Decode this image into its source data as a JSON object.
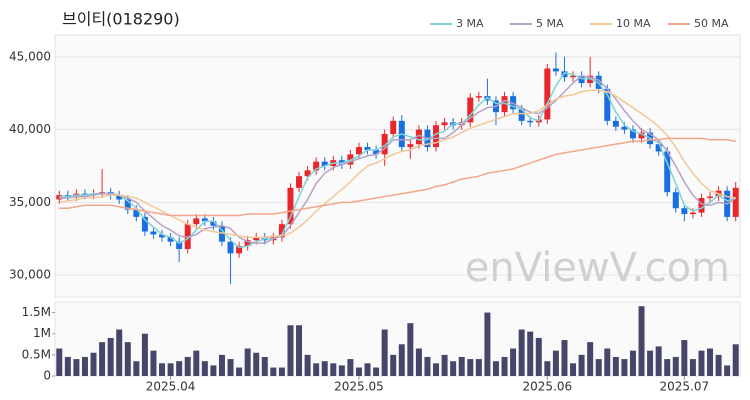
{
  "chart_data": [
    {
      "type": "candlestick",
      "title": "브이티(018290)",
      "watermark": "enViewV.com",
      "up_color": "#e8262b",
      "down_color": "#1a6fe0",
      "ylim": [
        28500,
        46500
      ],
      "yticks": [
        {
          "value": 30000,
          "label": "30,000"
        },
        {
          "value": 35000,
          "label": "35,000"
        },
        {
          "value": 40000,
          "label": "40,000"
        },
        {
          "value": 45000,
          "label": "45,000"
        }
      ],
      "grid": true,
      "legend": "top-right",
      "open": [
        35200,
        35500,
        35400,
        35600,
        35500,
        35600,
        35700,
        35500,
        35200,
        34500,
        34000,
        33000,
        32800,
        32600,
        32300,
        31800,
        33500,
        33900,
        33700,
        33400,
        32300,
        31500,
        32000,
        32400,
        32600,
        32400,
        32600,
        33500,
        36000,
        36800,
        37200,
        37800,
        37500,
        37900,
        37600,
        38300,
        38800,
        38600,
        38300,
        39700,
        40600,
        38800,
        39000,
        40000,
        38800,
        40300,
        40500,
        40300,
        40500,
        42200,
        42300,
        42000,
        41200,
        42300,
        41400,
        40600,
        40500,
        40700,
        44200,
        44000,
        43600,
        43700,
        43200,
        43700,
        42800,
        40600,
        40200,
        40000,
        39400,
        39800,
        39000,
        38500,
        35700,
        34600,
        34200,
        34300,
        35300,
        35400,
        35800,
        34000
      ],
      "high": [
        35800,
        35800,
        35900,
        35900,
        35900,
        37300,
        36000,
        35800,
        35500,
        34800,
        34300,
        33300,
        33100,
        32900,
        32600,
        33800,
        34200,
        34200,
        34000,
        33700,
        32600,
        32300,
        32700,
        32900,
        32900,
        32900,
        33800,
        36300,
        37100,
        37500,
        38100,
        38100,
        38200,
        38200,
        38600,
        39100,
        39100,
        38900,
        40000,
        40900,
        41000,
        39300,
        40300,
        40300,
        40600,
        40800,
        40800,
        40800,
        42500,
        42600,
        43500,
        42300,
        42600,
        42600,
        41700,
        40900,
        41000,
        44500,
        45300,
        45000,
        44000,
        44000,
        45000,
        44000,
        43100,
        40900,
        40500,
        40300,
        40100,
        40100,
        39300,
        38800,
        36000,
        34900,
        34600,
        35600,
        35700,
        36100,
        36100,
        36400
      ],
      "low": [
        34900,
        35100,
        35100,
        35200,
        35200,
        35300,
        35200,
        34900,
        34200,
        33700,
        32700,
        32500,
        32300,
        32000,
        30900,
        31500,
        33200,
        33400,
        33100,
        32000,
        29400,
        31200,
        31700,
        32100,
        32100,
        32100,
        32300,
        33200,
        35700,
        36500,
        36900,
        37200,
        37200,
        37300,
        37300,
        38000,
        38300,
        38000,
        37500,
        39400,
        38500,
        38000,
        38700,
        38500,
        38500,
        40000,
        40000,
        40000,
        40200,
        41900,
        41700,
        40300,
        40900,
        41100,
        40300,
        40200,
        40200,
        40400,
        43700,
        43300,
        43300,
        42900,
        42900,
        42500,
        40300,
        39900,
        39700,
        39100,
        39100,
        38700,
        38200,
        35400,
        34300,
        33700,
        33900,
        34000,
        35000,
        35100,
        33700,
        33700
      ],
      "close": [
        35500,
        35400,
        35600,
        35500,
        35600,
        35700,
        35500,
        35200,
        34500,
        34000,
        33000,
        32800,
        32600,
        32300,
        31800,
        33500,
        33900,
        33700,
        33400,
        32300,
        31500,
        32000,
        32400,
        32600,
        32400,
        32600,
        33500,
        36000,
        36800,
        37200,
        37800,
        37500,
        37900,
        37600,
        38300,
        38800,
        38600,
        38300,
        39700,
        40600,
        38800,
        39000,
        40000,
        38800,
        40300,
        40500,
        40300,
        40500,
        42200,
        42300,
        42000,
        41200,
        42300,
        41400,
        40600,
        40500,
        40700,
        44200,
        44000,
        43600,
        43700,
        43200,
        43700,
        42800,
        40600,
        40200,
        40000,
        39400,
        39800,
        39000,
        38500,
        35700,
        34600,
        34200,
        34300,
        35300,
        35400,
        35800,
        34000,
        36000
      ],
      "series": [
        {
          "name": "3 MA",
          "color": "#7fd3d6",
          "values": [
            35400,
            35400,
            35500,
            35500,
            35600,
            35600,
            35600,
            35500,
            35100,
            34600,
            33800,
            33300,
            32800,
            32600,
            32200,
            32500,
            33100,
            33700,
            33700,
            33100,
            32400,
            31900,
            32000,
            32300,
            32500,
            32500,
            32800,
            34000,
            35400,
            36700,
            37300,
            37500,
            37700,
            37700,
            37900,
            38200,
            38600,
            38600,
            38900,
            39500,
            39700,
            39500,
            39300,
            39300,
            39700,
            39900,
            40400,
            40400,
            41000,
            41700,
            42200,
            41800,
            41800,
            41600,
            41400,
            40800,
            40600,
            41800,
            43000,
            43900,
            43800,
            43500,
            43500,
            43200,
            42400,
            41200,
            40300,
            39900,
            39700,
            39400,
            39100,
            37700,
            36300,
            34800,
            34400,
            34600,
            35000,
            35500,
            35100,
            35300
          ]
        },
        {
          "name": "5 MA",
          "color": "#b3a2c8",
          "values": [
            35300,
            35300,
            35400,
            35400,
            35500,
            35600,
            35600,
            35500,
            35300,
            35000,
            34400,
            33900,
            33400,
            33100,
            32700,
            32600,
            32800,
            33200,
            33300,
            33400,
            33200,
            32600,
            32300,
            32200,
            32200,
            32500,
            32700,
            33400,
            34300,
            35200,
            36300,
            37000,
            37400,
            37600,
            37800,
            38000,
            38200,
            38300,
            38700,
            39300,
            39300,
            39300,
            39600,
            39400,
            39400,
            39400,
            39800,
            40300,
            40800,
            41200,
            41500,
            41600,
            42000,
            41800,
            41500,
            41200,
            41100,
            41500,
            42000,
            42600,
            43200,
            43700,
            43600,
            43400,
            42800,
            42100,
            41300,
            40600,
            40000,
            39700,
            39300,
            38500,
            37500,
            36400,
            35500,
            34900,
            34800,
            35000,
            34900,
            35300
          ]
        },
        {
          "name": "10 MA",
          "color": "#f0c896",
          "values": [
            35000,
            35100,
            35200,
            35300,
            35300,
            35400,
            35500,
            35500,
            35400,
            35300,
            35000,
            34700,
            34400,
            34100,
            33800,
            33500,
            33300,
            33100,
            33000,
            32900,
            32800,
            32700,
            32600,
            32600,
            32600,
            32700,
            32700,
            32900,
            33300,
            33800,
            34400,
            34900,
            35400,
            35900,
            36400,
            37000,
            37500,
            37700,
            38000,
            38300,
            38500,
            38600,
            38900,
            39000,
            39100,
            39300,
            39500,
            39800,
            40100,
            40300,
            40500,
            40700,
            40900,
            41100,
            41100,
            41100,
            41300,
            41700,
            42100,
            42300,
            42400,
            42600,
            42700,
            42700,
            42600,
            42300,
            41900,
            41500,
            41100,
            40700,
            40200,
            39600,
            38800,
            37800,
            37000,
            36300,
            35800,
            35600,
            35400,
            35300
          ]
        },
        {
          "name": "50 MA",
          "color": "#f4a58a",
          "values": [
            34600,
            34600,
            34700,
            34800,
            34800,
            34800,
            34800,
            34700,
            34600,
            34500,
            34400,
            34300,
            34200,
            34100,
            34100,
            34100,
            34100,
            34100,
            34100,
            34100,
            34100,
            34100,
            34200,
            34200,
            34200,
            34200,
            34300,
            34400,
            34500,
            34600,
            34700,
            34800,
            34900,
            35000,
            35000,
            35100,
            35200,
            35300,
            35400,
            35500,
            35600,
            35700,
            35800,
            35900,
            36100,
            36200,
            36400,
            36600,
            36700,
            36800,
            37000,
            37100,
            37200,
            37300,
            37500,
            37700,
            37900,
            38100,
            38300,
            38400,
            38500,
            38600,
            38700,
            38800,
            38900,
            39000,
            39100,
            39200,
            39200,
            39300,
            39300,
            39400,
            39400,
            39400,
            39400,
            39400,
            39300,
            39300,
            39300,
            39200
          ]
        }
      ]
    },
    {
      "type": "bar",
      "color": "#46466a",
      "ylim": [
        0,
        1750000
      ],
      "yticks": [
        0,
        {
          "value": 500000,
          "label": "0.5M"
        },
        {
          "value": 1000000,
          "label": "1M"
        },
        {
          "value": 1500000,
          "label": "1.5M"
        }
      ],
      "categories": [
        null,
        null,
        null,
        null,
        null,
        null,
        null,
        null,
        null,
        null,
        null,
        null,
        null,
        "2025.04",
        null,
        null,
        null,
        null,
        null,
        null,
        null,
        null,
        null,
        null,
        null,
        null,
        null,
        null,
        null,
        null,
        null,
        null,
        null,
        null,
        null,
        "2025.05",
        null,
        null,
        null,
        null,
        null,
        null,
        null,
        null,
        null,
        null,
        null,
        null,
        null,
        null,
        null,
        null,
        null,
        null,
        null,
        null,
        null,
        "2025.06",
        null,
        null,
        null,
        null,
        null,
        null,
        null,
        null,
        null,
        null,
        null,
        null,
        null,
        null,
        null,
        "2025.07",
        null,
        null,
        null,
        null,
        null,
        null
      ],
      "values": [
        650000,
        450000,
        400000,
        450000,
        550000,
        800000,
        900000,
        1100000,
        800000,
        350000,
        1000000,
        600000,
        300000,
        300000,
        350000,
        450000,
        600000,
        350000,
        250000,
        500000,
        400000,
        200000,
        650000,
        550000,
        450000,
        200000,
        200000,
        1200000,
        1200000,
        500000,
        300000,
        350000,
        300000,
        250000,
        400000,
        200000,
        300000,
        200000,
        1100000,
        500000,
        750000,
        1250000,
        650000,
        450000,
        300000,
        500000,
        350000,
        450000,
        400000,
        400000,
        1500000,
        350000,
        450000,
        650000,
        1100000,
        1050000,
        900000,
        350000,
        600000,
        850000,
        300000,
        500000,
        800000,
        400000,
        650000,
        450000,
        400000,
        600000,
        1650000,
        600000,
        700000,
        400000,
        450000,
        850000,
        400000,
        600000,
        650000,
        500000,
        250000,
        750000
      ]
    }
  ]
}
